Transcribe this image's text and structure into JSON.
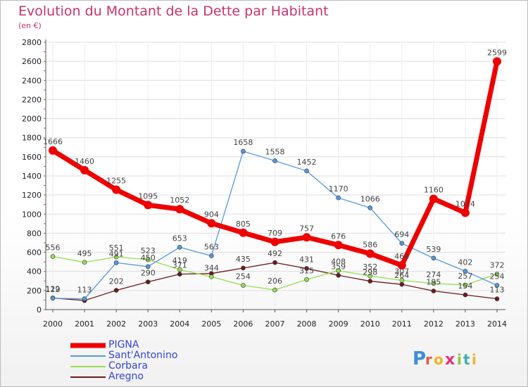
{
  "title": "Evolution du Montant de la Dette par Habitant",
  "unit": "(en €)",
  "logo": "Proxiti",
  "colors": {
    "title": "#c8336b",
    "axis": "#555555",
    "grid": "#dddddd"
  },
  "chart_data": {
    "type": "line",
    "title": "Evolution du Montant de la Dette par Habitant",
    "subtitle": "(en €)",
    "x": [
      "2000",
      "2001",
      "2002",
      "2003",
      "2004",
      "2005",
      "2006",
      "2007",
      "2008",
      "2009",
      "2010",
      "2011",
      "2012",
      "2013",
      "2014"
    ],
    "ylim": [
      0,
      2800
    ],
    "yticks": [
      0,
      200,
      400,
      600,
      800,
      1000,
      1200,
      1400,
      1600,
      1800,
      2000,
      2200,
      2400,
      2600,
      2800
    ],
    "grid": true,
    "legend_position": "bottom-left",
    "series": [
      {
        "name": "Aregno",
        "color": "#6b1a1a",
        "values": [
          122,
          95,
          202,
          290,
          371,
          378,
          435,
          492,
          431,
          359,
          298,
          264,
          195,
          154,
          113
        ],
        "labels": [
          "122",
          "",
          "202",
          "290",
          "371",
          "",
          "435",
          "492",
          "431",
          "359",
          "298",
          "264",
          "195",
          "154",
          "113"
        ]
      },
      {
        "name": "Corbara",
        "color": "#99dd55",
        "values": [
          556,
          495,
          551,
          523,
          419,
          344,
          254,
          206,
          315,
          408,
          352,
          307,
          274,
          257,
          372
        ],
        "labels": [
          "556",
          "495",
          "551",
          "523",
          "419",
          "344",
          "254",
          "206",
          "315",
          "408",
          "352",
          "307",
          "274",
          "257",
          "372"
        ]
      },
      {
        "name": "Sant'Antonino",
        "color": "#5599dd",
        "values": [
          119,
          113,
          491,
          450,
          653,
          563,
          1658,
          1558,
          1452,
          1170,
          1066,
          694,
          539,
          402,
          254
        ],
        "labels": [
          "119",
          "113",
          "491",
          "450",
          "653",
          "563",
          "1658",
          "1558",
          "1452",
          "1170",
          "1066",
          "694",
          "539",
          "402",
          "254"
        ]
      },
      {
        "name": "PIGNA",
        "color": "#ee0000",
        "values": [
          1666,
          1460,
          1255,
          1095,
          1052,
          904,
          805,
          709,
          757,
          676,
          586,
          464,
          1160,
          1014,
          2599
        ],
        "labels": [
          "1666",
          "1460",
          "1255",
          "1095",
          "1052",
          "904",
          "805",
          "709",
          "757",
          "676",
          "586",
          "464",
          "1160",
          "1014",
          "2599"
        ]
      }
    ]
  }
}
